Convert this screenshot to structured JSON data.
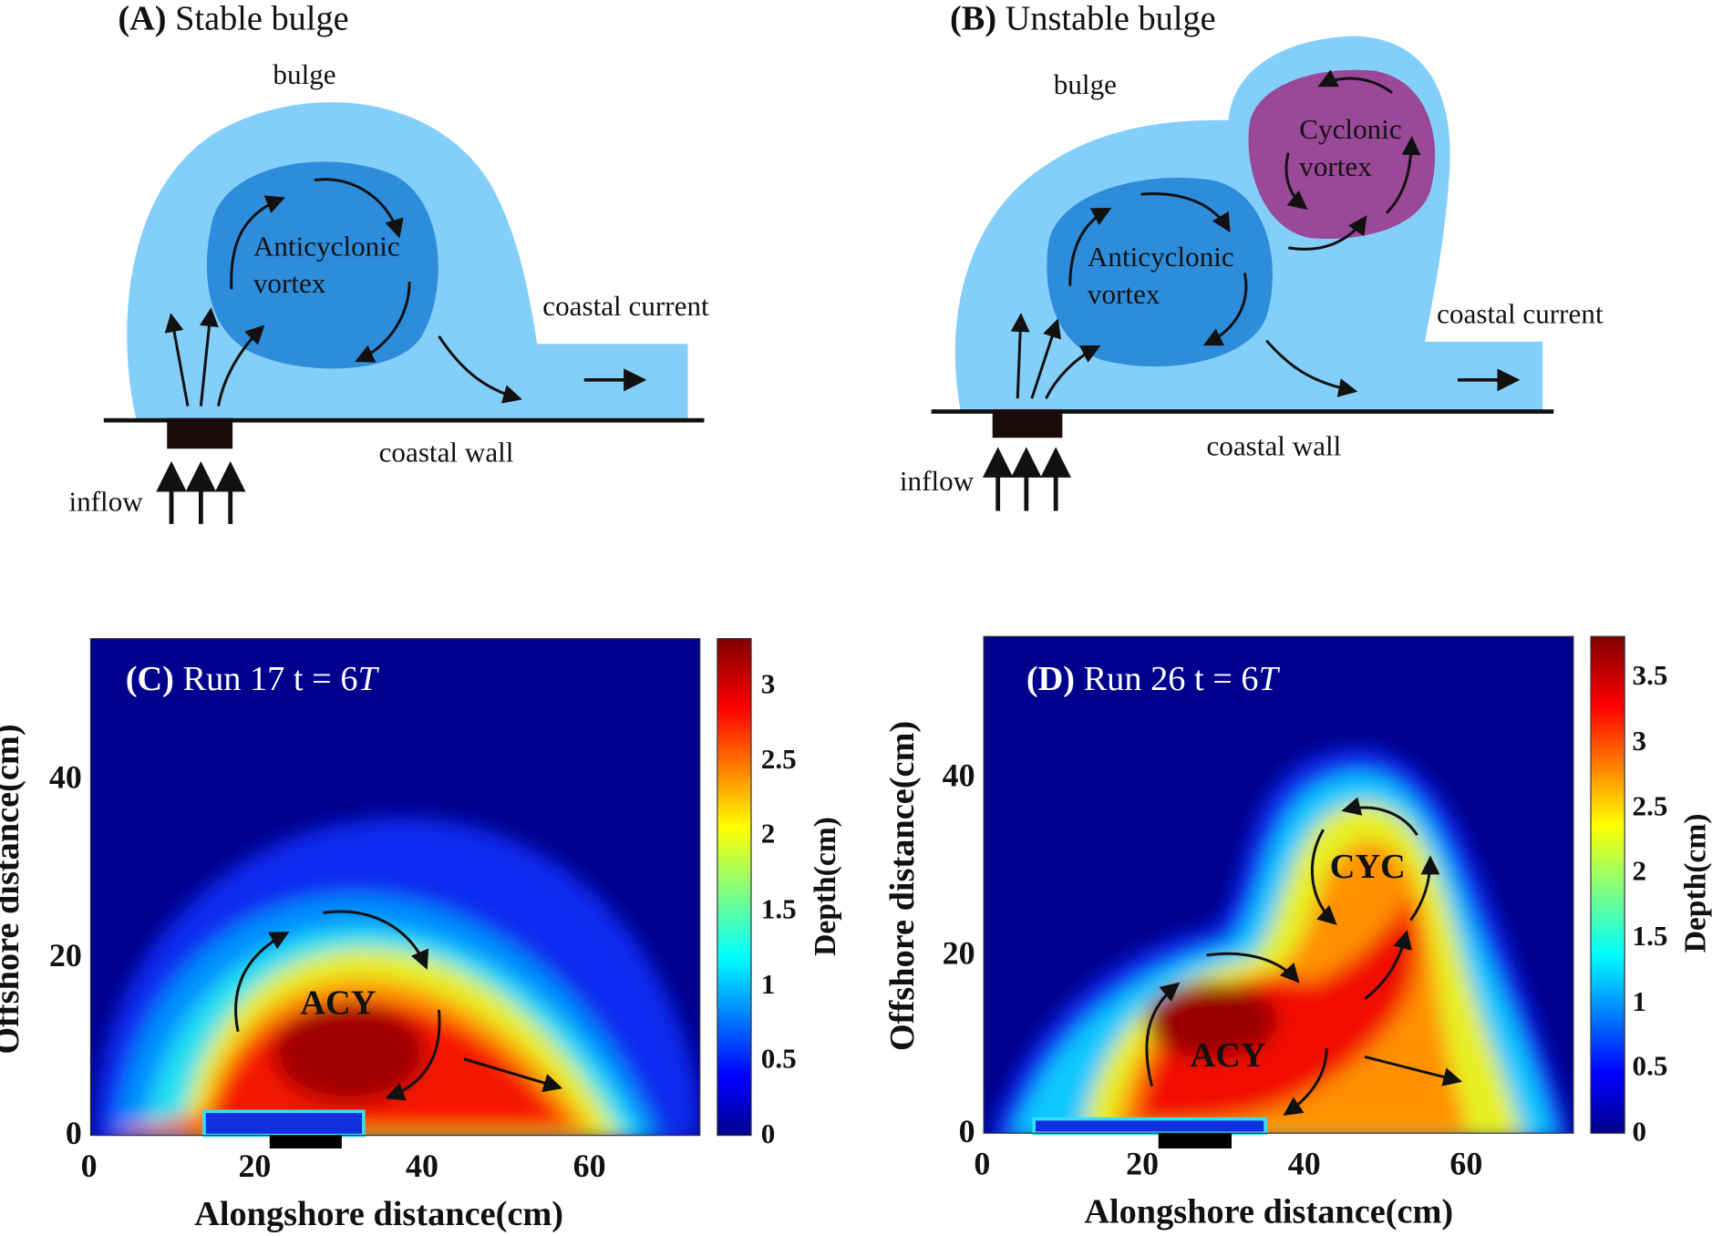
{
  "panel_a": {
    "tag": "(A)",
    "title": "Stable bulge",
    "labels": {
      "bulge": "bulge",
      "vortex_1": "Anticyclonic",
      "vortex_2": "vortex",
      "coastal_current": "coastal current",
      "coastal_wall": "coastal wall",
      "inflow": "inflow"
    }
  },
  "panel_b": {
    "tag": "(B)",
    "title": "Unstable bulge",
    "labels": {
      "bulge": "bulge",
      "vortex_1": "Anticyclonic",
      "vortex_2": "vortex",
      "cyclonic_1": "Cyclonic",
      "cyclonic_2": "vortex",
      "coastal_current": "coastal current",
      "coastal_wall": "coastal wall",
      "inflow": "inflow"
    }
  },
  "panel_c": {
    "tag": "(C)",
    "title": "Run 17 t = 6",
    "title_italic": "T",
    "marker": "ACY",
    "xlabel": "Alongshore distance(cm)",
    "ylabel": "Offshore distance(cm)",
    "clabel": "Depth(cm)",
    "xticks": [
      "0",
      "20",
      "40",
      "60"
    ],
    "yticks": [
      "0",
      "20",
      "40"
    ],
    "cticks": [
      "0",
      "0.5",
      "1",
      "1.5",
      "2",
      "2.5",
      "3"
    ]
  },
  "panel_d": {
    "tag": "(D)",
    "title": "Run 26 t = 6",
    "title_italic": "T",
    "marker_1": "ACY",
    "marker_2": "CYC",
    "xlabel": "Alongshore distance(cm)",
    "ylabel": "Offshore distance(cm)",
    "clabel": "Depth(cm)",
    "xticks": [
      "0",
      "20",
      "40",
      "60"
    ],
    "yticks": [
      "0",
      "20",
      "40"
    ],
    "cticks": [
      "0",
      "0.5",
      "1",
      "1.5",
      "2",
      "2.5",
      "3",
      "3.5"
    ]
  },
  "colors": {
    "bulge": "#84cff9",
    "anticyclonic": "#2e8ddb",
    "cyclonic": "#9a4898",
    "background": "#00008c"
  }
}
